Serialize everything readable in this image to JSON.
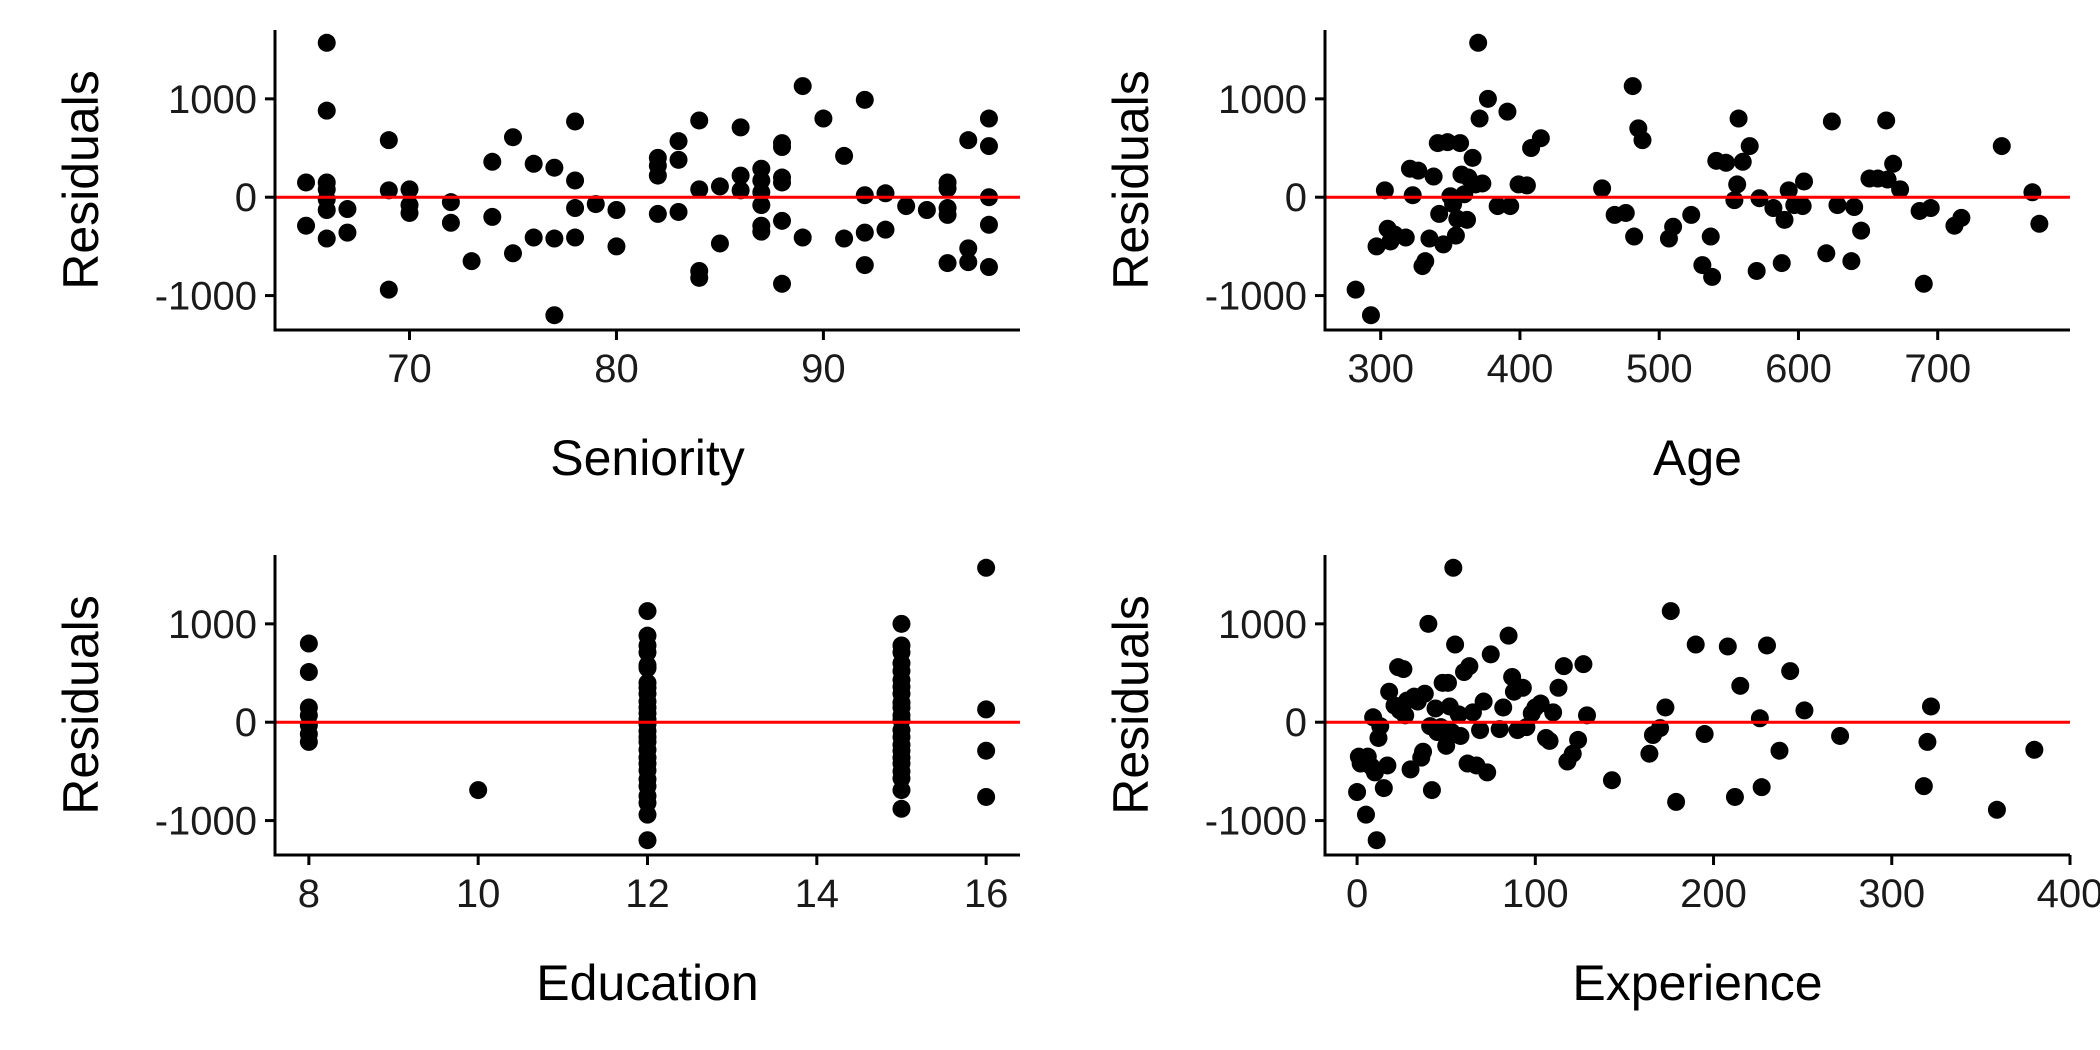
{
  "figure": {
    "background": "#ffffff",
    "point_color": "#000000",
    "reference_line_color": "#ff0000"
  },
  "chart_data": [
    {
      "type": "scatter",
      "xlabel": "Seniority",
      "ylabel": "Residuals",
      "xlim": [
        63.5,
        99.5
      ],
      "ylim": [
        -1350,
        1700
      ],
      "xticks": [
        70,
        80,
        90
      ],
      "yticks": [
        -1000,
        0,
        1000
      ],
      "reference_line": {
        "y": 0,
        "color": "#ff0000"
      },
      "points": [
        [
          65,
          150
        ],
        [
          65,
          -290
        ],
        [
          66,
          1570
        ],
        [
          66,
          880
        ],
        [
          66,
          150
        ],
        [
          66,
          80
        ],
        [
          66,
          -20
        ],
        [
          66,
          -130
        ],
        [
          66,
          -420
        ],
        [
          67,
          -120
        ],
        [
          67,
          -360
        ],
        [
          69,
          580
        ],
        [
          69,
          70
        ],
        [
          69,
          -940
        ],
        [
          70,
          80
        ],
        [
          70,
          -80
        ],
        [
          70,
          -160
        ],
        [
          72,
          -50
        ],
        [
          72,
          -260
        ],
        [
          73,
          -650
        ],
        [
          74,
          360
        ],
        [
          74,
          -200
        ],
        [
          75,
          610
        ],
        [
          75,
          -570
        ],
        [
          76,
          340
        ],
        [
          76,
          -410
        ],
        [
          77,
          300
        ],
        [
          77,
          -420
        ],
        [
          77,
          -1200
        ],
        [
          78,
          770
        ],
        [
          78,
          170
        ],
        [
          78,
          -110
        ],
        [
          78,
          -410
        ],
        [
          79,
          -70
        ],
        [
          80,
          -130
        ],
        [
          80,
          -500
        ],
        [
          82,
          400
        ],
        [
          82,
          320
        ],
        [
          82,
          220
        ],
        [
          82,
          -170
        ],
        [
          83,
          570
        ],
        [
          83,
          380
        ],
        [
          83,
          -150
        ],
        [
          84,
          780
        ],
        [
          84,
          80
        ],
        [
          84,
          -750
        ],
        [
          84,
          -820
        ],
        [
          85,
          110
        ],
        [
          85,
          -470
        ],
        [
          86,
          710
        ],
        [
          86,
          220
        ],
        [
          86,
          70
        ],
        [
          87,
          290
        ],
        [
          87,
          170
        ],
        [
          87,
          50
        ],
        [
          87,
          -80
        ],
        [
          87,
          -290
        ],
        [
          87,
          -350
        ],
        [
          88,
          550
        ],
        [
          88,
          510
        ],
        [
          88,
          200
        ],
        [
          88,
          150
        ],
        [
          88,
          -240
        ],
        [
          88,
          -880
        ],
        [
          89,
          1130
        ],
        [
          89,
          -410
        ],
        [
          90,
          800
        ],
        [
          91,
          420
        ],
        [
          91,
          -420
        ],
        [
          92,
          990
        ],
        [
          92,
          20
        ],
        [
          92,
          -360
        ],
        [
          92,
          -690
        ],
        [
          93,
          40
        ],
        [
          93,
          -330
        ],
        [
          94,
          -90
        ],
        [
          95,
          -130
        ],
        [
          96,
          150
        ],
        [
          96,
          90
        ],
        [
          96,
          -110
        ],
        [
          96,
          -180
        ],
        [
          96,
          -670
        ],
        [
          97,
          580
        ],
        [
          97,
          -520
        ],
        [
          97,
          -660
        ],
        [
          98,
          800
        ],
        [
          98,
          520
        ],
        [
          98,
          0
        ],
        [
          98,
          -280
        ],
        [
          98,
          -710
        ]
      ]
    },
    {
      "type": "scatter",
      "xlabel": "Age",
      "ylabel": "Residuals",
      "xlim": [
        260,
        795
      ],
      "ylim": [
        -1350,
        1700
      ],
      "xticks": [
        300,
        400,
        500,
        600,
        700
      ],
      "yticks": [
        -1000,
        0,
        1000
      ],
      "reference_line": {
        "y": 0,
        "color": "#ff0000"
      },
      "points": [
        [
          282,
          -940
        ],
        [
          293,
          -1200
        ],
        [
          297,
          -500
        ],
        [
          303,
          70
        ],
        [
          305,
          -320
        ],
        [
          307,
          -450
        ],
        [
          310,
          -380
        ],
        [
          318,
          -410
        ],
        [
          321,
          290
        ],
        [
          323,
          20
        ],
        [
          327,
          270
        ],
        [
          330,
          -700
        ],
        [
          332,
          -650
        ],
        [
          335,
          -420
        ],
        [
          338,
          210
        ],
        [
          341,
          550
        ],
        [
          342,
          -170
        ],
        [
          345,
          -480
        ],
        [
          348,
          560
        ],
        [
          350,
          10
        ],
        [
          352,
          -70
        ],
        [
          354,
          -390
        ],
        [
          355,
          -220
        ],
        [
          357,
          550
        ],
        [
          358,
          230
        ],
        [
          360,
          30
        ],
        [
          362,
          -230
        ],
        [
          363,
          200
        ],
        [
          366,
          400
        ],
        [
          368,
          130
        ],
        [
          370,
          1570
        ],
        [
          371,
          800
        ],
        [
          373,
          140
        ],
        [
          377,
          1000
        ],
        [
          384,
          -90
        ],
        [
          391,
          870
        ],
        [
          393,
          -90
        ],
        [
          399,
          130
        ],
        [
          405,
          120
        ],
        [
          408,
          500
        ],
        [
          415,
          600
        ],
        [
          459,
          90
        ],
        [
          468,
          -180
        ],
        [
          476,
          -160
        ],
        [
          481,
          1130
        ],
        [
          482,
          -400
        ],
        [
          485,
          700
        ],
        [
          488,
          580
        ],
        [
          507,
          -420
        ],
        [
          510,
          -300
        ],
        [
          523,
          -180
        ],
        [
          531,
          -690
        ],
        [
          537,
          -400
        ],
        [
          538,
          -810
        ],
        [
          541,
          370
        ],
        [
          548,
          350
        ],
        [
          554,
          -30
        ],
        [
          556,
          130
        ],
        [
          557,
          800
        ],
        [
          560,
          360
        ],
        [
          565,
          520
        ],
        [
          570,
          -750
        ],
        [
          572,
          -10
        ],
        [
          582,
          -110
        ],
        [
          588,
          -670
        ],
        [
          590,
          -230
        ],
        [
          593,
          70
        ],
        [
          597,
          -80
        ],
        [
          603,
          -90
        ],
        [
          604,
          160
        ],
        [
          620,
          -570
        ],
        [
          624,
          770
        ],
        [
          628,
          -80
        ],
        [
          638,
          -650
        ],
        [
          640,
          -100
        ],
        [
          645,
          -340
        ],
        [
          651,
          190
        ],
        [
          657,
          190
        ],
        [
          663,
          780
        ],
        [
          664,
          180
        ],
        [
          668,
          340
        ],
        [
          673,
          80
        ],
        [
          687,
          -140
        ],
        [
          690,
          -880
        ],
        [
          695,
          -110
        ],
        [
          712,
          -290
        ],
        [
          717,
          -210
        ],
        [
          746,
          520
        ],
        [
          768,
          50
        ],
        [
          773,
          -270
        ]
      ]
    },
    {
      "type": "scatter",
      "xlabel": "Education",
      "ylabel": "Residuals",
      "xlim": [
        7.6,
        16.4
      ],
      "ylim": [
        -1350,
        1700
      ],
      "xticks": [
        8,
        10,
        12,
        14,
        16
      ],
      "yticks": [
        -1000,
        0,
        1000
      ],
      "reference_line": {
        "y": 0,
        "color": "#ff0000"
      },
      "points": [
        [
          8,
          800
        ],
        [
          8,
          510
        ],
        [
          8,
          150
        ],
        [
          8,
          70
        ],
        [
          8,
          -30
        ],
        [
          8,
          -120
        ],
        [
          8,
          -200
        ],
        [
          10,
          -690
        ],
        [
          12,
          1130
        ],
        [
          12,
          880
        ],
        [
          12,
          780
        ],
        [
          12,
          710
        ],
        [
          12,
          580
        ],
        [
          12,
          550
        ],
        [
          12,
          400
        ],
        [
          12,
          350
        ],
        [
          12,
          290
        ],
        [
          12,
          210
        ],
        [
          12,
          150
        ],
        [
          12,
          90
        ],
        [
          12,
          30
        ],
        [
          12,
          -20
        ],
        [
          12,
          -90
        ],
        [
          12,
          -150
        ],
        [
          12,
          -200
        ],
        [
          12,
          -280
        ],
        [
          12,
          -360
        ],
        [
          12,
          -420
        ],
        [
          12,
          -490
        ],
        [
          12,
          -580
        ],
        [
          12,
          -650
        ],
        [
          12,
          -750
        ],
        [
          12,
          -820
        ],
        [
          12,
          -940
        ],
        [
          12,
          -1200
        ],
        [
          15,
          1000
        ],
        [
          15,
          780
        ],
        [
          15,
          710
        ],
        [
          15,
          600
        ],
        [
          15,
          520
        ],
        [
          15,
          430
        ],
        [
          15,
          360
        ],
        [
          15,
          290
        ],
        [
          15,
          200
        ],
        [
          15,
          150
        ],
        [
          15,
          70
        ],
        [
          15,
          20
        ],
        [
          15,
          -80
        ],
        [
          15,
          -150
        ],
        [
          15,
          -230
        ],
        [
          15,
          -290
        ],
        [
          15,
          -360
        ],
        [
          15,
          -420
        ],
        [
          15,
          -500
        ],
        [
          15,
          -570
        ],
        [
          15,
          -690
        ],
        [
          15,
          -880
        ],
        [
          16,
          1570
        ],
        [
          16,
          130
        ],
        [
          16,
          -290
        ],
        [
          16,
          -760
        ]
      ]
    },
    {
      "type": "scatter",
      "xlabel": "Experience",
      "ylabel": "Residuals",
      "xlim": [
        -18,
        400
      ],
      "ylim": [
        -1350,
        1700
      ],
      "xticks": [
        0,
        100,
        200,
        300,
        400
      ],
      "yticks": [
        -1000,
        0,
        1000
      ],
      "reference_line": {
        "y": 0,
        "color": "#ff0000"
      },
      "points": [
        [
          0,
          -710
        ],
        [
          1,
          -350
        ],
        [
          2,
          -420
        ],
        [
          3,
          -380
        ],
        [
          5,
          -940
        ],
        [
          6,
          -350
        ],
        [
          8,
          -450
        ],
        [
          9,
          50
        ],
        [
          10,
          -510
        ],
        [
          11,
          -1200
        ],
        [
          12,
          -160
        ],
        [
          13,
          -40
        ],
        [
          15,
          -670
        ],
        [
          17,
          -440
        ],
        [
          18,
          310
        ],
        [
          21,
          170
        ],
        [
          23,
          560
        ],
        [
          24,
          120
        ],
        [
          26,
          540
        ],
        [
          27,
          70
        ],
        [
          28,
          220
        ],
        [
          30,
          -480
        ],
        [
          32,
          260
        ],
        [
          34,
          210
        ],
        [
          36,
          -360
        ],
        [
          37,
          -300
        ],
        [
          38,
          290
        ],
        [
          40,
          1000
        ],
        [
          41,
          -40
        ],
        [
          42,
          -690
        ],
        [
          44,
          140
        ],
        [
          45,
          -100
        ],
        [
          47,
          -50
        ],
        [
          48,
          400
        ],
        [
          50,
          -240
        ],
        [
          51,
          400
        ],
        [
          52,
          160
        ],
        [
          53,
          -100
        ],
        [
          54,
          1570
        ],
        [
          55,
          790
        ],
        [
          57,
          80
        ],
        [
          58,
          -140
        ],
        [
          60,
          510
        ],
        [
          62,
          -420
        ],
        [
          63,
          570
        ],
        [
          65,
          100
        ],
        [
          67,
          -440
        ],
        [
          69,
          -80
        ],
        [
          71,
          210
        ],
        [
          73,
          -510
        ],
        [
          75,
          690
        ],
        [
          80,
          -70
        ],
        [
          82,
          150
        ],
        [
          85,
          880
        ],
        [
          87,
          460
        ],
        [
          88,
          310
        ],
        [
          90,
          -80
        ],
        [
          93,
          350
        ],
        [
          95,
          -50
        ],
        [
          98,
          90
        ],
        [
          100,
          150
        ],
        [
          103,
          190
        ],
        [
          106,
          -160
        ],
        [
          108,
          -190
        ],
        [
          110,
          100
        ],
        [
          113,
          350
        ],
        [
          116,
          570
        ],
        [
          118,
          -400
        ],
        [
          121,
          -320
        ],
        [
          124,
          -180
        ],
        [
          127,
          590
        ],
        [
          129,
          70
        ],
        [
          143,
          -590
        ],
        [
          164,
          -320
        ],
        [
          166,
          -130
        ],
        [
          170,
          -60
        ],
        [
          173,
          150
        ],
        [
          176,
          1130
        ],
        [
          179,
          -810
        ],
        [
          190,
          790
        ],
        [
          195,
          -120
        ],
        [
          208,
          770
        ],
        [
          212,
          -760
        ],
        [
          215,
          370
        ],
        [
          226,
          40
        ],
        [
          227,
          -660
        ],
        [
          230,
          780
        ],
        [
          237,
          -290
        ],
        [
          243,
          520
        ],
        [
          251,
          120
        ],
        [
          271,
          -140
        ],
        [
          318,
          -650
        ],
        [
          320,
          -200
        ],
        [
          322,
          160
        ],
        [
          359,
          -890
        ],
        [
          380,
          -280
        ]
      ]
    }
  ]
}
